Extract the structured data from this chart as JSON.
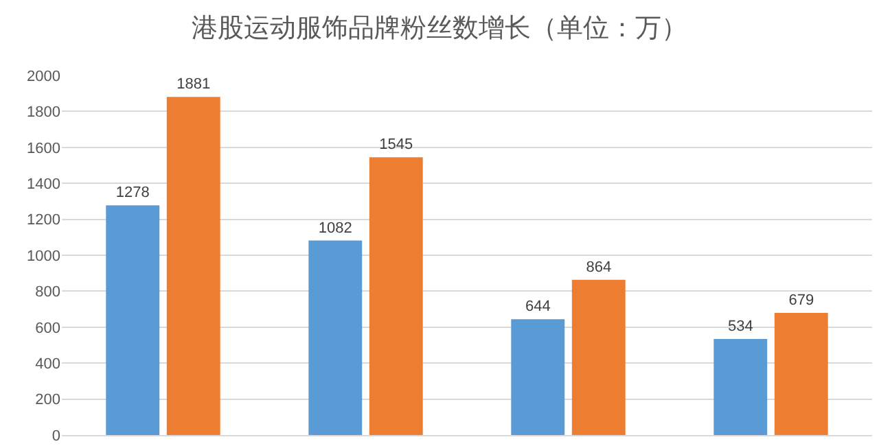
{
  "chart_data": {
    "type": "bar",
    "title": "港股运动服饰品牌粉丝数增长（单位：万）",
    "categories": [
      null,
      null,
      null,
      null
    ],
    "series": [
      {
        "color": "#5b9bd5",
        "values": [
          1278,
          1082,
          644,
          534
        ]
      },
      {
        "color": "#ed7d31",
        "values": [
          1881,
          1545,
          864,
          679
        ]
      }
    ],
    "ylim": [
      0,
      2000
    ],
    "yticks": [
      0,
      200,
      400,
      600,
      800,
      1000,
      1200,
      1400,
      1600,
      1800,
      2000
    ],
    "grid": "y",
    "data_labels": true
  }
}
